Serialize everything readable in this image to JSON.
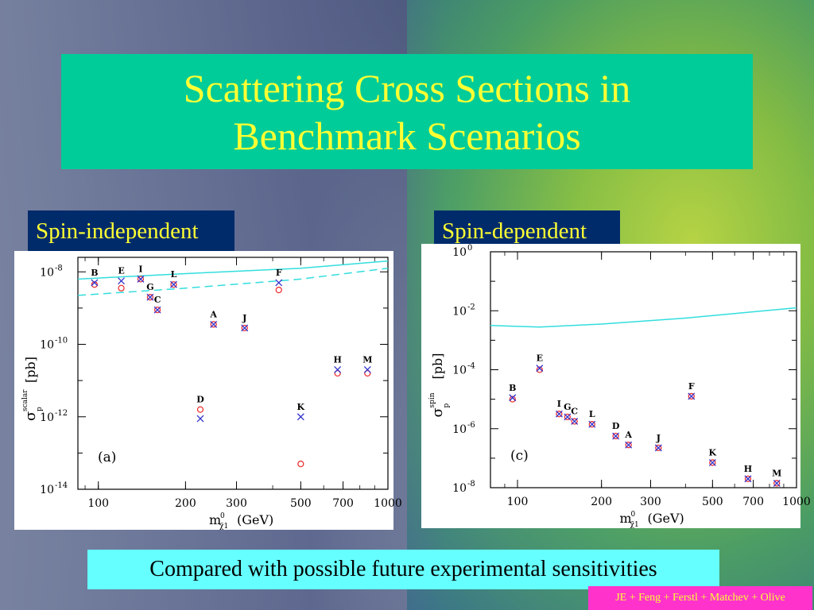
{
  "title": "Scattering Cross Sections in Benchmark Scenarios",
  "labels": {
    "spin_independent": "Spin-independent",
    "spin_dependent": "Spin-dependent"
  },
  "bottom_note": "Compared with possible future experimental sensitivities",
  "credit": "JE + Feng + Ferstl + Matchev + Olive",
  "colors": {
    "title_bg": "#00cc99",
    "title_text": "#ffff33",
    "label_bg": "#002b6b",
    "bottom_bg": "#66ffff",
    "credit_bg": "#ff33cc",
    "curve": "#33dddd",
    "cross": "#3333cc",
    "circle": "#ee3333"
  },
  "chart_data": [
    {
      "type": "scatter",
      "panel_tag": "(a)",
      "xlabel": "m",
      "xlabel_sub": "χ̃1",
      "xlabel_sup": "0",
      "xlabel_unit": "(GeV)",
      "ylabel": "σ",
      "ylabel_sub": "p",
      "ylabel_sup": "scalar",
      "ylabel_unit": "[pb]",
      "x_scale": "log",
      "y_scale": "log",
      "xlim": [
        85,
        1000
      ],
      "ylim_exp": [
        -14,
        -7.6
      ],
      "x_ticks": [
        100,
        200,
        300,
        500,
        700,
        1000
      ],
      "x_tick_labels": [
        "100",
        "200",
        "300",
        "500",
        "700",
        "1000"
      ],
      "y_ticks_exp": [
        -14,
        -12,
        -10,
        -8
      ],
      "y_tick_labels": [
        "10",
        "10",
        "10",
        "10"
      ],
      "y_tick_label_exps": [
        "-14",
        "-12",
        "-10",
        "-8"
      ],
      "points": [
        {
          "label": "B",
          "m": 97,
          "cross_exp": -8.3,
          "circle_exp": -8.35
        },
        {
          "label": "E",
          "m": 120,
          "cross_exp": -8.25,
          "circle_exp": -8.45
        },
        {
          "label": "I",
          "m": 140,
          "cross_exp": -8.2,
          "circle_exp": -8.2
        },
        {
          "label": "G",
          "m": 151,
          "cross_exp": -8.7,
          "circle_exp": -8.7
        },
        {
          "label": "C",
          "m": 160,
          "cross_exp": -9.05,
          "circle_exp": -9.05
        },
        {
          "label": "L",
          "m": 182,
          "cross_exp": -8.35,
          "circle_exp": -8.35
        },
        {
          "label": "A",
          "m": 250,
          "cross_exp": -9.45,
          "circle_exp": -9.45
        },
        {
          "label": "J",
          "m": 320,
          "cross_exp": -9.55,
          "circle_exp": -9.55
        },
        {
          "label": "F",
          "m": 420,
          "cross_exp": -8.3,
          "circle_exp": -8.5
        },
        {
          "label": "D",
          "m": 225,
          "cross_exp": -12.05,
          "circle_exp": -11.8
        },
        {
          "label": "K",
          "m": 500,
          "cross_exp": -12.0,
          "circle_exp": -13.3
        },
        {
          "label": "H",
          "m": 670,
          "cross_exp": -10.7,
          "circle_exp": -10.8
        },
        {
          "label": "M",
          "m": 850,
          "cross_exp": -10.7,
          "circle_exp": -10.8
        }
      ],
      "curves": [
        {
          "style": "solid",
          "points": [
            [
              85,
              -8.2
            ],
            [
              200,
              -8.05
            ],
            [
              500,
              -7.9
            ],
            [
              1000,
              -7.7
            ]
          ]
        },
        {
          "style": "dashed",
          "points": [
            [
              85,
              -8.65
            ],
            [
              200,
              -8.45
            ],
            [
              500,
              -8.2
            ],
            [
              1000,
              -7.9
            ]
          ]
        }
      ]
    },
    {
      "type": "scatter",
      "panel_tag": "(c)",
      "xlabel": "m",
      "xlabel_sub": "χ̃1",
      "xlabel_sup": "0",
      "xlabel_unit": "(GeV)",
      "ylabel": "σ",
      "ylabel_sub": "p",
      "ylabel_sup": "spin",
      "ylabel_unit": "[pb]",
      "x_scale": "log",
      "y_scale": "log",
      "xlim": [
        80,
        1000
      ],
      "ylim_exp": [
        -8,
        0
      ],
      "x_ticks": [
        100,
        200,
        300,
        500,
        700,
        1000
      ],
      "x_tick_labels": [
        "100",
        "200",
        "300",
        "500",
        "700",
        "1000"
      ],
      "y_ticks_exp": [
        -8,
        -6,
        -4,
        -2,
        0
      ],
      "y_tick_labels": [
        "10",
        "10",
        "10",
        "10",
        "10"
      ],
      "y_tick_label_exps": [
        "-8",
        "-6",
        "-4",
        "-2",
        "0"
      ],
      "points": [
        {
          "label": "B",
          "m": 96,
          "cross_exp": -4.95,
          "circle_exp": -5.0
        },
        {
          "label": "E",
          "m": 120,
          "cross_exp": -3.95,
          "circle_exp": -4.0
        },
        {
          "label": "I",
          "m": 141,
          "cross_exp": -5.5,
          "circle_exp": -5.5
        },
        {
          "label": "G",
          "m": 151,
          "cross_exp": -5.6,
          "circle_exp": -5.6
        },
        {
          "label": "C",
          "m": 160,
          "cross_exp": -5.75,
          "circle_exp": -5.75
        },
        {
          "label": "L",
          "m": 185,
          "cross_exp": -5.85,
          "circle_exp": -5.85
        },
        {
          "label": "D",
          "m": 225,
          "cross_exp": -6.25,
          "circle_exp": -6.25
        },
        {
          "label": "A",
          "m": 250,
          "cross_exp": -6.55,
          "circle_exp": -6.55
        },
        {
          "label": "J",
          "m": 320,
          "cross_exp": -6.65,
          "circle_exp": -6.65
        },
        {
          "label": "F",
          "m": 420,
          "cross_exp": -4.9,
          "circle_exp": -4.9
        },
        {
          "label": "K",
          "m": 500,
          "cross_exp": -7.15,
          "circle_exp": -7.15
        },
        {
          "label": "H",
          "m": 670,
          "cross_exp": -7.7,
          "circle_exp": -7.7
        },
        {
          "label": "M",
          "m": 850,
          "cross_exp": -7.85,
          "circle_exp": -7.85
        }
      ],
      "curves": [
        {
          "style": "solid",
          "points": [
            [
              80,
              -2.5
            ],
            [
              120,
              -2.55
            ],
            [
              200,
              -2.45
            ],
            [
              400,
              -2.25
            ],
            [
              1000,
              -1.9
            ]
          ]
        }
      ]
    }
  ]
}
